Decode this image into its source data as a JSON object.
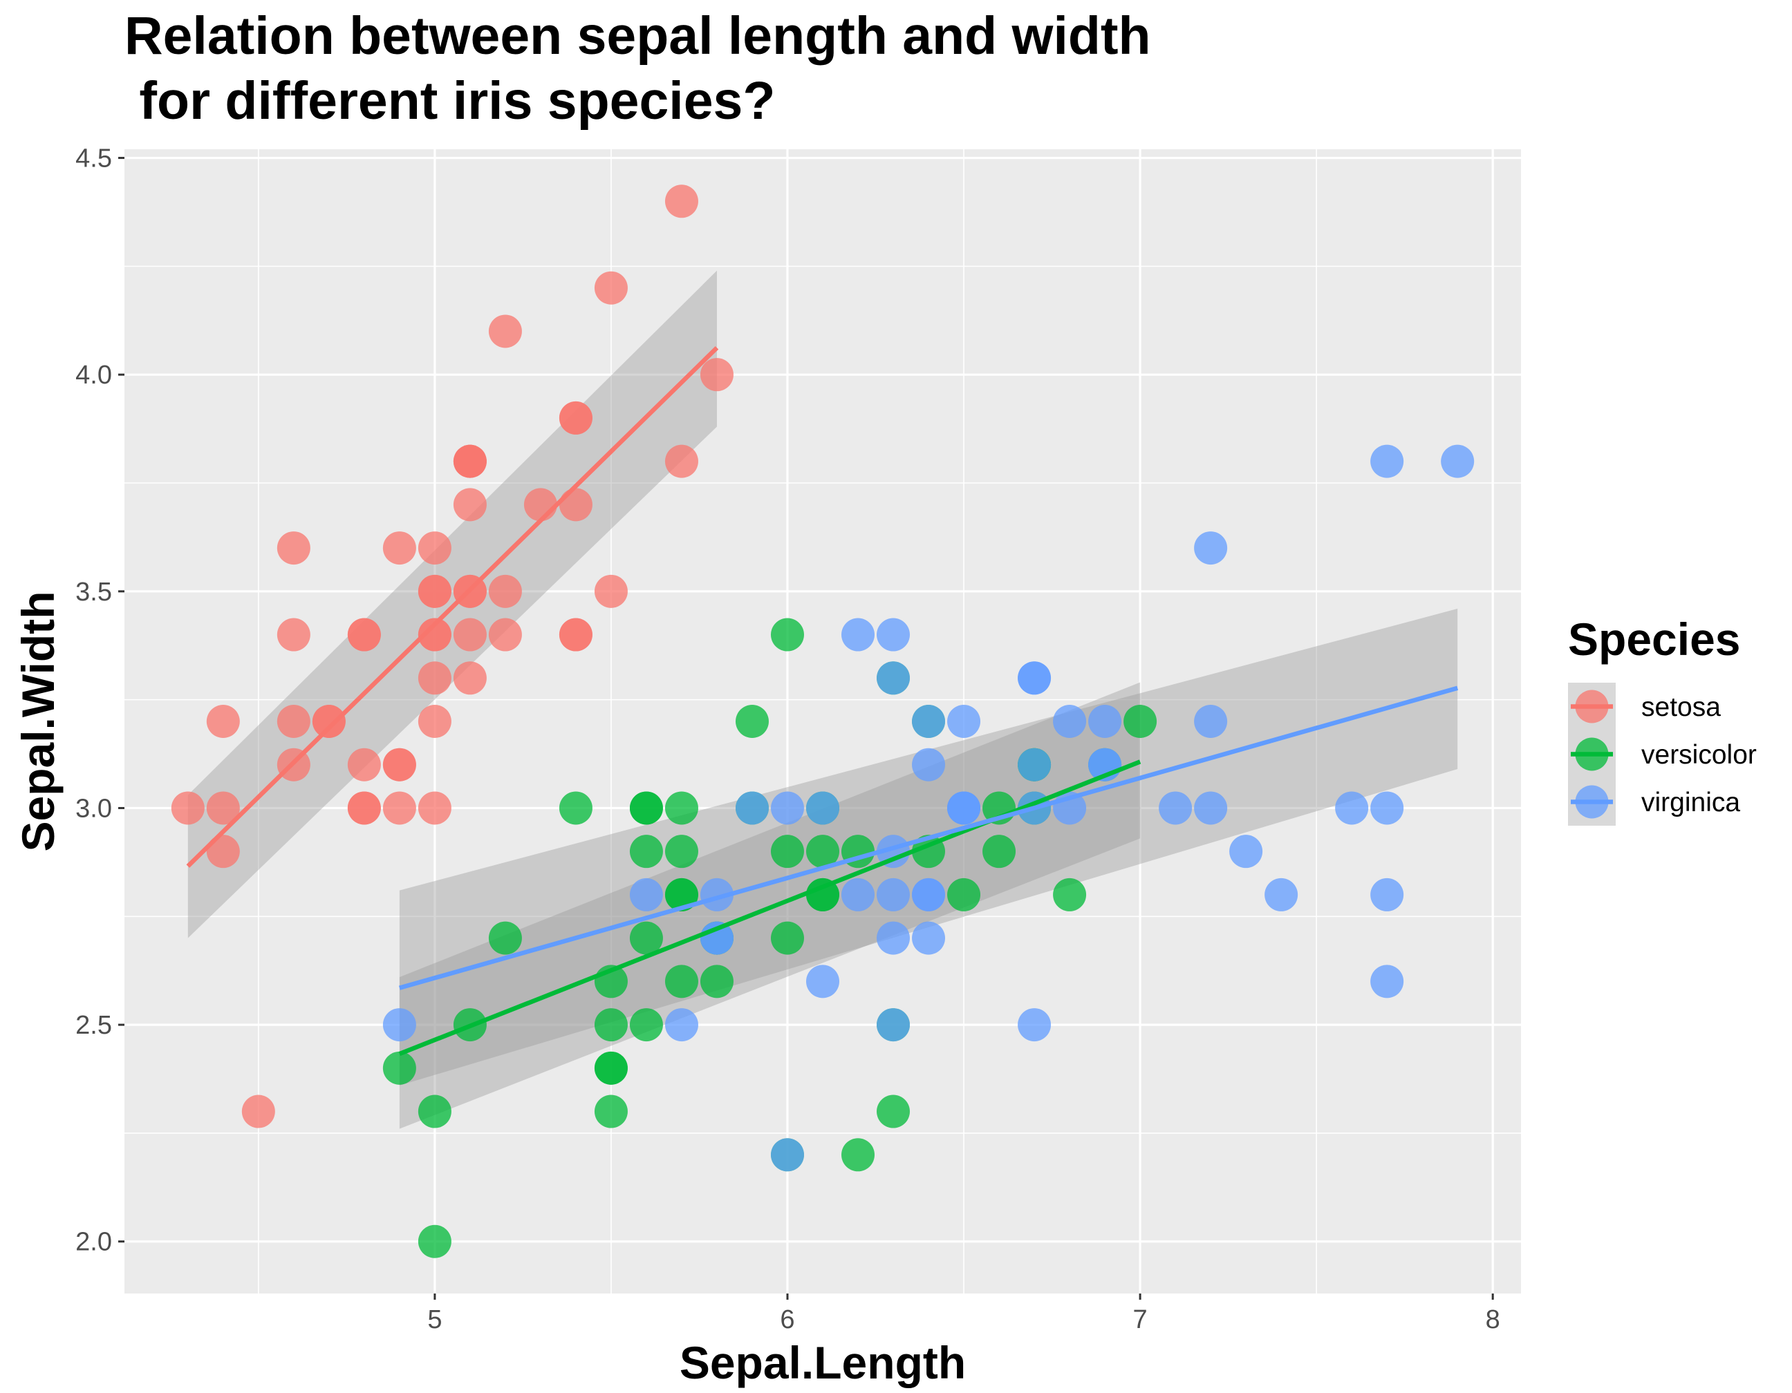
{
  "chart_data": {
    "type": "scatter",
    "title_line1": "Relation between sepal length and width",
    "title_line2": " for different iris species?",
    "xlabel": "Sepal.Length",
    "ylabel": "Sepal.Width",
    "xlim": [
      4.12,
      8.08
    ],
    "ylim": [
      1.88,
      4.52
    ],
    "x_ticks": [
      "5",
      "6",
      "7",
      "8"
    ],
    "y_ticks": [
      "2.0",
      "2.5",
      "3.0",
      "3.5",
      "4.0",
      "4.5"
    ],
    "grid": true,
    "legend": {
      "title": "Species",
      "placement": "right"
    },
    "series": [
      {
        "name": "setosa",
        "color": "#F8766D",
        "x": [
          5.1,
          4.9,
          4.7,
          4.6,
          5.0,
          5.4,
          4.6,
          5.0,
          4.4,
          4.9,
          5.4,
          4.8,
          4.8,
          4.3,
          5.8,
          5.7,
          5.4,
          5.1,
          5.7,
          5.1,
          5.4,
          5.1,
          4.6,
          5.1,
          4.8,
          5.0,
          5.0,
          5.2,
          5.2,
          4.7,
          4.8,
          5.4,
          5.2,
          5.5,
          4.9,
          5.0,
          5.5,
          4.9,
          4.4,
          5.1,
          5.0,
          4.5,
          4.4,
          5.0,
          5.1,
          4.8,
          5.1,
          4.6,
          5.3,
          5.0
        ],
        "y": [
          3.5,
          3.0,
          3.2,
          3.1,
          3.6,
          3.9,
          3.4,
          3.4,
          2.9,
          3.1,
          3.7,
          3.4,
          3.0,
          3.0,
          4.0,
          4.4,
          3.9,
          3.5,
          3.8,
          3.8,
          3.4,
          3.7,
          3.6,
          3.3,
          3.4,
          3.0,
          3.4,
          3.5,
          3.4,
          3.2,
          3.1,
          3.4,
          4.1,
          4.2,
          3.1,
          3.2,
          3.5,
          3.6,
          3.0,
          3.4,
          3.5,
          2.3,
          3.2,
          3.5,
          3.8,
          3.0,
          3.8,
          3.2,
          3.7,
          3.3
        ],
        "fit": {
          "x": [
            4.3,
            5.8
          ],
          "y": [
            2.866,
            4.062
          ],
          "band_lower": [
            2.7,
            3.88
          ],
          "band_upper": [
            3.03,
            4.24
          ]
        }
      },
      {
        "name": "versicolor",
        "color": "#00BA38",
        "x": [
          7.0,
          6.4,
          6.9,
          5.5,
          6.5,
          5.7,
          6.3,
          4.9,
          6.6,
          5.2,
          5.0,
          5.9,
          6.0,
          6.1,
          5.6,
          6.7,
          5.6,
          5.8,
          6.2,
          5.6,
          5.9,
          6.1,
          6.3,
          6.1,
          6.4,
          6.6,
          6.8,
          6.7,
          6.0,
          5.7,
          5.5,
          5.5,
          5.8,
          6.0,
          5.4,
          6.0,
          6.7,
          6.3,
          5.6,
          5.5,
          5.5,
          6.1,
          5.8,
          5.0,
          5.6,
          5.7,
          5.7,
          6.2,
          5.1,
          5.7
        ],
        "y": [
          3.2,
          3.2,
          3.1,
          2.3,
          2.8,
          2.8,
          3.3,
          2.4,
          2.9,
          2.7,
          2.0,
          3.0,
          2.2,
          2.9,
          2.9,
          3.1,
          3.0,
          2.7,
          2.2,
          2.5,
          3.2,
          2.8,
          2.5,
          2.8,
          2.9,
          3.0,
          2.8,
          3.0,
          2.9,
          2.6,
          2.4,
          2.4,
          2.7,
          2.7,
          3.0,
          3.4,
          3.1,
          2.3,
          3.0,
          2.5,
          2.6,
          3.0,
          2.6,
          2.3,
          2.7,
          3.0,
          2.9,
          2.9,
          2.5,
          2.8
        ],
        "fit": {
          "x": [
            4.9,
            7.0
          ],
          "y": [
            2.433,
            3.107
          ],
          "band_lower": [
            2.26,
            2.93
          ],
          "band_upper": [
            2.61,
            3.29
          ]
        }
      },
      {
        "name": "virginica",
        "color": "#619CFF",
        "x": [
          6.3,
          5.8,
          7.1,
          6.3,
          6.5,
          7.6,
          4.9,
          7.3,
          6.7,
          7.2,
          6.5,
          6.4,
          6.8,
          5.7,
          5.8,
          6.4,
          6.5,
          7.7,
          7.7,
          6.0,
          6.9,
          5.6,
          7.7,
          6.3,
          6.7,
          7.2,
          6.2,
          6.1,
          6.4,
          7.2,
          7.4,
          7.9,
          6.4,
          6.3,
          6.1,
          7.7,
          6.3,
          6.4,
          6.0,
          6.9,
          6.7,
          6.9,
          5.8,
          6.8,
          6.7,
          6.7,
          6.3,
          6.5,
          6.2,
          5.9
        ],
        "y": [
          3.3,
          2.7,
          3.0,
          2.9,
          3.0,
          3.0,
          2.5,
          2.9,
          2.5,
          3.6,
          3.2,
          2.7,
          3.0,
          2.5,
          2.8,
          3.2,
          3.0,
          3.8,
          2.6,
          2.2,
          3.2,
          2.8,
          2.8,
          2.7,
          3.3,
          3.2,
          2.8,
          3.0,
          2.8,
          3.0,
          2.8,
          3.8,
          2.8,
          2.8,
          2.6,
          3.0,
          3.4,
          3.1,
          3.0,
          3.1,
          3.1,
          3.1,
          2.7,
          3.2,
          3.3,
          3.0,
          2.5,
          3.0,
          3.4,
          3.0
        ],
        "fit": {
          "x": [
            4.9,
            7.9
          ],
          "y": [
            2.585,
            3.277
          ],
          "band_lower": [
            2.36,
            3.09
          ],
          "band_upper": [
            2.81,
            3.46
          ]
        }
      }
    ]
  }
}
